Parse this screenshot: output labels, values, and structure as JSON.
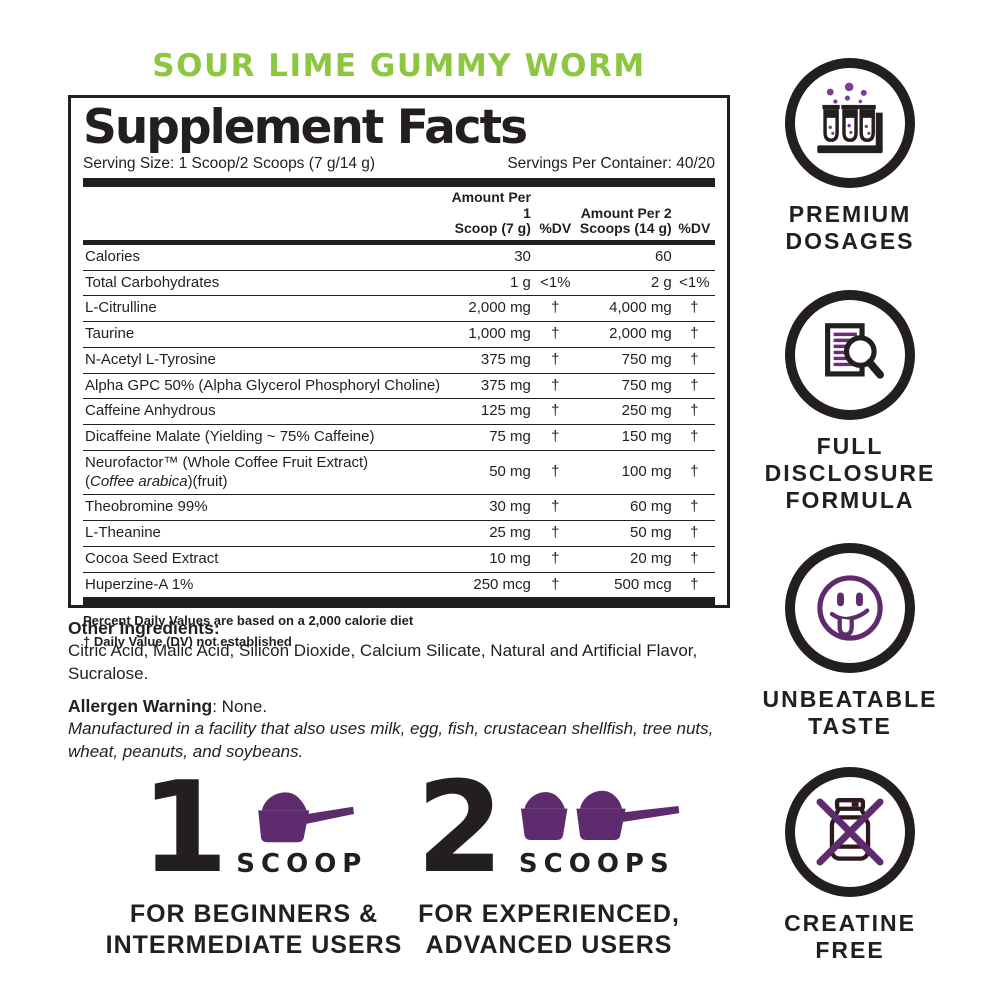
{
  "colors": {
    "green": "#8DC63F",
    "purple": "#5E2B6E",
    "purple_light": "#7C3F93",
    "ink": "#231F20",
    "jar_outline": "#2E191C"
  },
  "flavor_title": "SOUR LIME GUMMY WORM",
  "panel": {
    "title": "Supplement Facts",
    "serving_size": "Serving Size: 1 Scoop/2 Scoops (7 g/14 g)",
    "servings_per_container": "Servings Per Container: 40/20",
    "header": {
      "amount1_line1": "Amount Per 1",
      "amount1_line2": "Scoop (7 g)",
      "dv1": "%DV",
      "amount2_line1": "Amount Per 2",
      "amount2_line2": "Scoops (14 g)",
      "dv2": "%DV"
    },
    "rows": [
      {
        "name": "Calories",
        "amt1": "30",
        "dv1": "",
        "amt2": "60",
        "dv2": ""
      },
      {
        "name": "Total Carbohydrates",
        "amt1": "1 g",
        "dv1": "<1%",
        "amt2": "2 g",
        "dv2": "<1%"
      },
      {
        "name": "L-Citrulline",
        "amt1": "2,000 mg",
        "dv1": "†",
        "amt2": "4,000 mg",
        "dv2": "†"
      },
      {
        "name": "Taurine",
        "amt1": "1,000 mg",
        "dv1": "†",
        "amt2": "2,000 mg",
        "dv2": "†"
      },
      {
        "name": "N-Acetyl L-Tyrosine",
        "amt1": "375 mg",
        "dv1": "†",
        "amt2": "750 mg",
        "dv2": "†"
      },
      {
        "name": "Alpha GPC 50% (Alpha Glycerol Phosphoryl Choline)",
        "amt1": "375 mg",
        "dv1": "†",
        "amt2": "750 mg",
        "dv2": "†"
      },
      {
        "name": "Caffeine Anhydrous",
        "amt1": "125 mg",
        "dv1": "†",
        "amt2": "250 mg",
        "dv2": "†"
      },
      {
        "name": "Dicaffeine Malate (Yielding ~ 75% Caffeine)",
        "amt1": "75 mg",
        "dv1": "†",
        "amt2": "150 mg",
        "dv2": "†"
      },
      {
        "name": "Neurofactor™ (Whole Coffee Fruit Extract)",
        "sub": {
          "pre": "(",
          "italic": "Coffee arabica",
          "post": ")(fruit)"
        },
        "amt1": "50 mg",
        "dv1": "†",
        "amt2": "100 mg",
        "dv2": "†"
      },
      {
        "name": "Theobromine 99%",
        "amt1": "30 mg",
        "dv1": "†",
        "amt2": "60 mg",
        "dv2": "†"
      },
      {
        "name": "L-Theanine",
        "amt1": "25 mg",
        "dv1": "†",
        "amt2": "50 mg",
        "dv2": "†"
      },
      {
        "name": "Cocoa Seed Extract",
        "amt1": "10 mg",
        "dv1": "†",
        "amt2": "20 mg",
        "dv2": "†"
      },
      {
        "name": "Huperzine-A 1%",
        "amt1": "250 mcg",
        "dv1": "†",
        "amt2": "500 mcg",
        "dv2": "†"
      }
    ],
    "footnote1": "Percent Daily Values are based on a 2,000 calorie diet",
    "footnote2": "† Daily Value (DV) not established"
  },
  "other_ingredients": {
    "label": "Other Ingredients:",
    "text": "Citric Acid, Malic Acid, Silicon Dioxide, Calcium Silicate, Natural and Artificial Flavor, Sucralose."
  },
  "allergen": {
    "label": "Allergen Warning",
    "value": ": None.",
    "facility_note": "Manufactured in a facility that also uses milk, egg, fish, crustacean shellfish, tree nuts, wheat, peanuts, and soybeans."
  },
  "serving_guides": [
    {
      "number": "1",
      "unit": "SCOOP",
      "caption_lines": [
        "FOR BEGINNERS &",
        "INTERMEDIATE USERS"
      ]
    },
    {
      "number": "2",
      "unit": "SCOOPS",
      "caption_lines": [
        "FOR EXPERIENCED,",
        "ADVANCED USERS"
      ]
    }
  ],
  "badges": [
    {
      "icon": "test-tubes-icon",
      "lines": [
        "PREMIUM",
        "DOSAGES"
      ]
    },
    {
      "icon": "document-magnifier-icon",
      "lines": [
        "FULL",
        "DISCLOSURE",
        "FORMULA"
      ]
    },
    {
      "icon": "smiley-tongue-icon",
      "lines": [
        "UNBEATABLE",
        "TASTE"
      ]
    },
    {
      "icon": "no-creatine-jar-icon",
      "lines": [
        "CREATINE",
        "FREE"
      ]
    }
  ]
}
